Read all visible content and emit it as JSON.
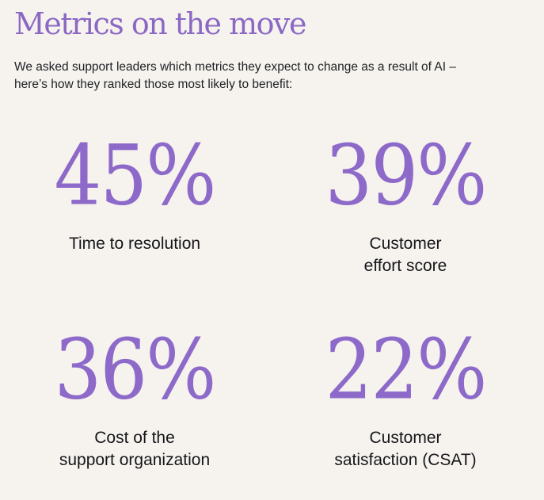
{
  "header": {
    "title": "Metrics on the move",
    "subtitle": "We asked support leaders which metrics they expect to change as a result of AI – here’s how they ranked those most likely to benefit:"
  },
  "colors": {
    "accent": "#8d6ac9",
    "background": "#f6f3ee",
    "text": "#16161a"
  },
  "metrics": [
    {
      "value": "45%",
      "label": "Time to resolution"
    },
    {
      "value": "39%",
      "label": "Customer\neffort score"
    },
    {
      "value": "36%",
      "label": "Cost of the\nsupport organization"
    },
    {
      "value": "22%",
      "label": "Customer\nsatisfaction (CSAT)"
    }
  ]
}
